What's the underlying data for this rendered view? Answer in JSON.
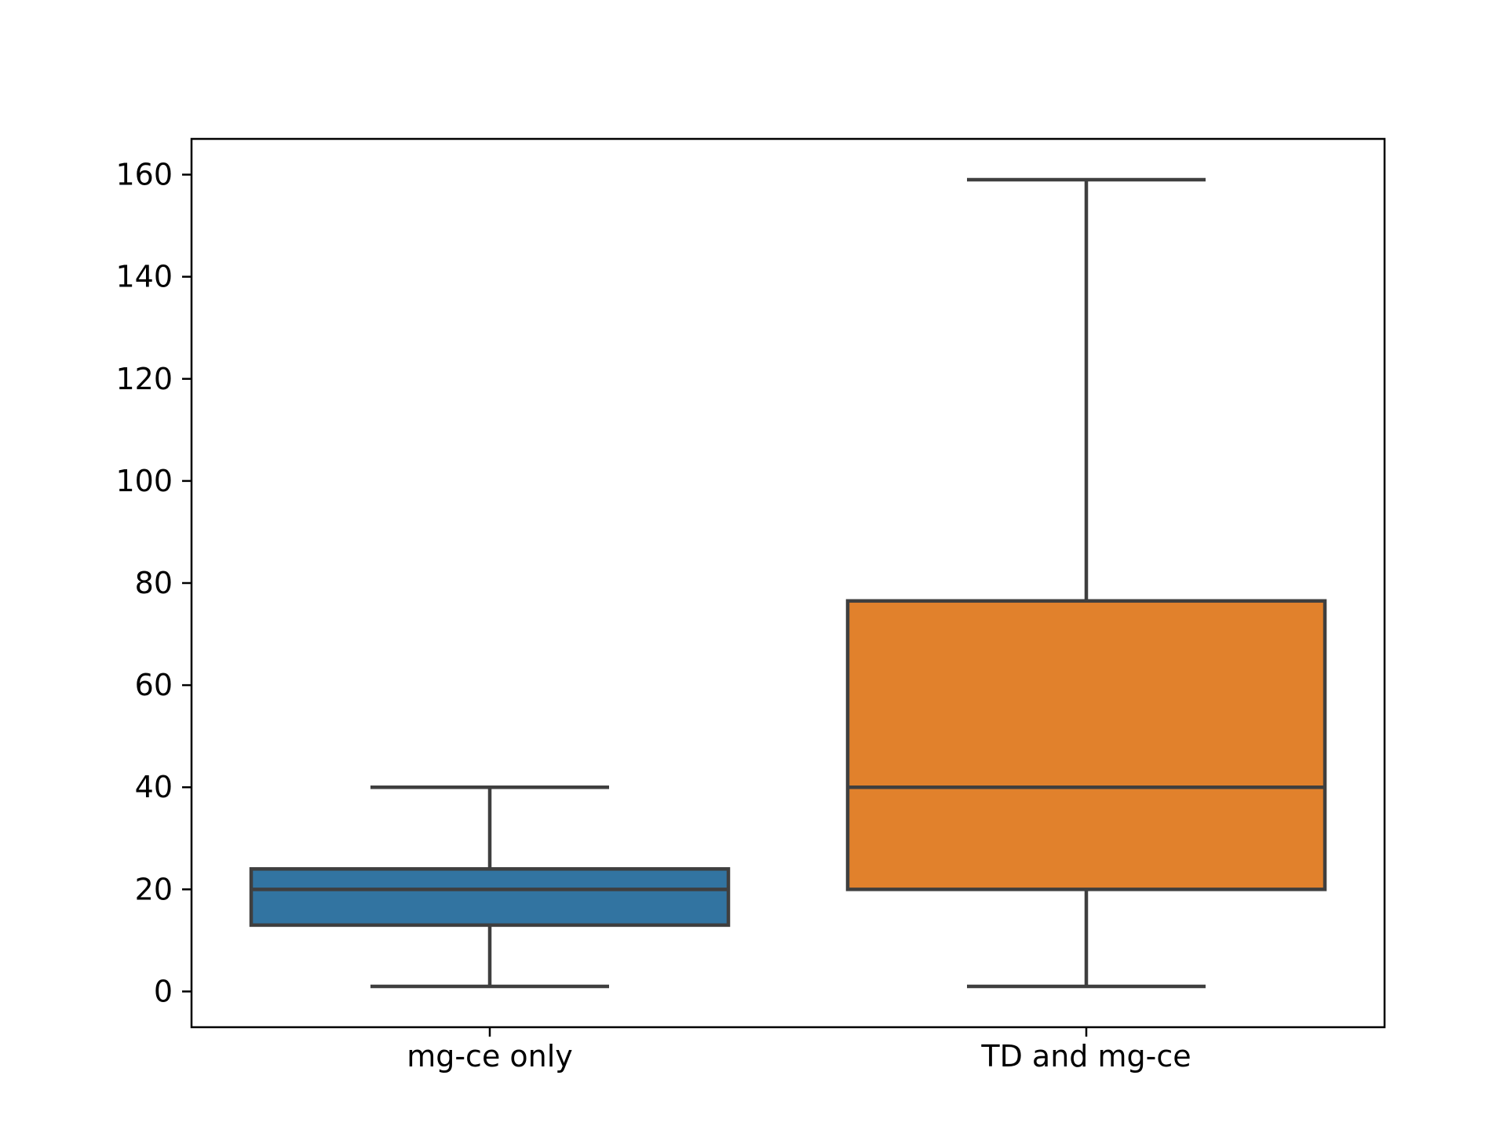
{
  "chart_data": {
    "type": "box",
    "title": "",
    "xlabel": "",
    "ylabel": "",
    "ylim": [
      -7,
      167
    ],
    "yticks": [
      0,
      20,
      40,
      60,
      80,
      100,
      120,
      140,
      160
    ],
    "ytick_labels": [
      "0",
      "20",
      "40",
      "60",
      "80",
      "100",
      "120",
      "140",
      "160"
    ],
    "categories": [
      "mg-ce only",
      "TD and mg-ce"
    ],
    "boxes": [
      {
        "label": "mg-ce only",
        "whisker_low": 1,
        "q1": 13,
        "median": 20,
        "q3": 24,
        "whisker_high": 40,
        "color": "#3274a1"
      },
      {
        "label": "TD and mg-ce",
        "whisker_low": 1,
        "q1": 20,
        "median": 40,
        "q3": 76.5,
        "whisker_high": 159,
        "color": "#e1812c"
      }
    ],
    "line_color": "#3f3f3f",
    "grid": false,
    "legend": "none"
  }
}
